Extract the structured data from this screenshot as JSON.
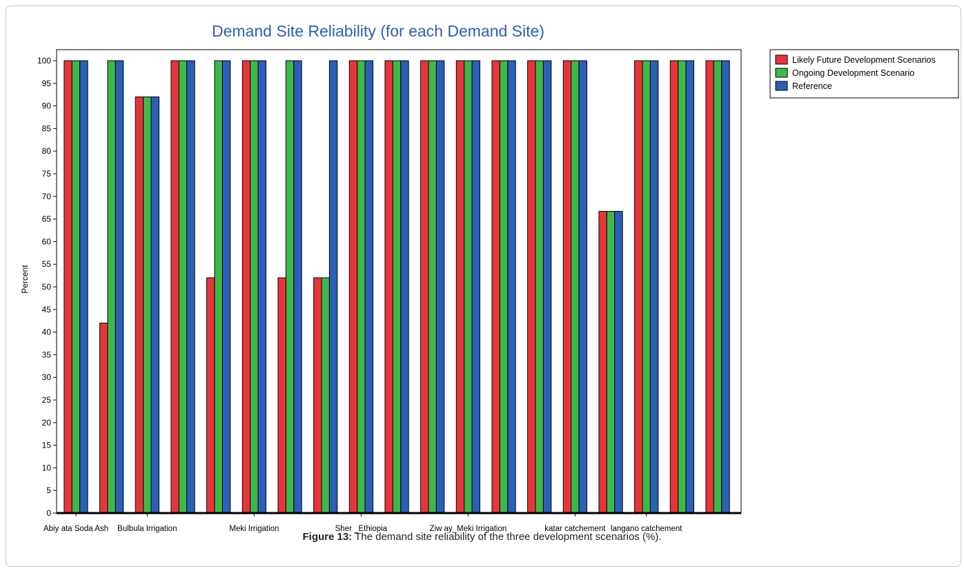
{
  "caption": {
    "label": "Figure 13:",
    "text": "The demand site reliability of the three development scenarios (%)."
  },
  "chart_data": {
    "type": "bar",
    "title": "Demand Site Reliability (for each Demand Site)",
    "xlabel": "",
    "ylabel": "Percent",
    "ylim": [
      0,
      100
    ],
    "yticks": [
      0,
      5,
      10,
      15,
      20,
      25,
      30,
      35,
      40,
      45,
      50,
      55,
      60,
      65,
      70,
      75,
      80,
      85,
      90,
      95,
      100
    ],
    "grid": false,
    "legend_position": "top-right",
    "category_count": 19,
    "category_labels": [
      {
        "index": 0,
        "text": "Abiy ata Soda Ash"
      },
      {
        "index": 2,
        "text": "Bulbula Irrigation"
      },
      {
        "index": 5,
        "text": "Meki Irrigation"
      },
      {
        "index": 8,
        "text": "Sher _Ethiopia"
      },
      {
        "index": 11,
        "text": "Ziw ay_Meki Irrigation"
      },
      {
        "index": 14,
        "text": "katar catchement"
      },
      {
        "index": 16,
        "text": "langano catchement"
      }
    ],
    "series": [
      {
        "name": "Likely Future Development Scenarios",
        "color": "#e8353b",
        "values": [
          100,
          42,
          92,
          100,
          52,
          100,
          52,
          52,
          100,
          100,
          100,
          100,
          100,
          100,
          100,
          66.7,
          100,
          100,
          100
        ]
      },
      {
        "name": "Ongoing Development Scenario",
        "color": "#3db84a",
        "values": [
          100,
          100,
          92,
          100,
          100,
          100,
          100,
          52,
          100,
          100,
          100,
          100,
          100,
          100,
          100,
          66.7,
          100,
          100,
          100
        ]
      },
      {
        "name": "Reference",
        "color": "#2c5fb8",
        "values": [
          100,
          100,
          92,
          100,
          100,
          100,
          100,
          100,
          100,
          100,
          100,
          100,
          100,
          100,
          100,
          66.7,
          100,
          100,
          100
        ]
      }
    ]
  }
}
